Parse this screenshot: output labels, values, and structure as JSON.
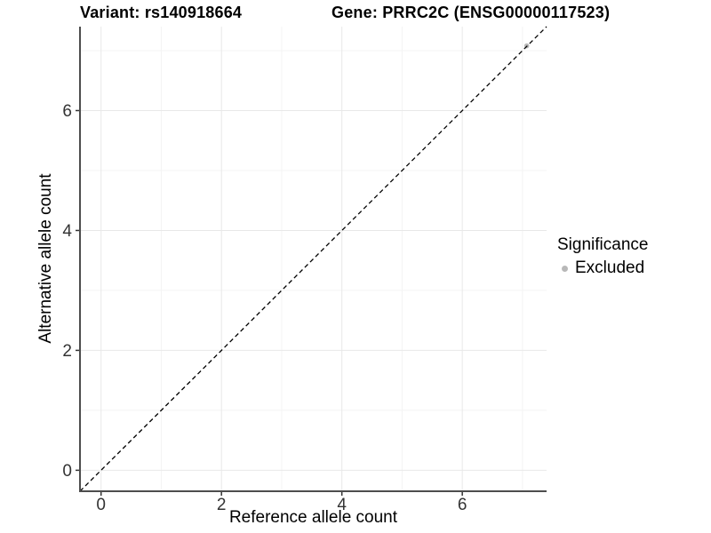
{
  "chart_data": {
    "type": "scatter",
    "titles": {
      "variant": "Variant: rs140918664",
      "gene": "Gene: PRRC2C (ENSG00000117523)"
    },
    "xlabel": "Reference allele count",
    "ylabel": "Alternative allele count",
    "xlim": [
      -0.35,
      7.4
    ],
    "ylim": [
      -0.35,
      7.4
    ],
    "x_major_ticks": [
      0,
      2,
      4,
      6
    ],
    "y_major_ticks": [
      0,
      2,
      4,
      6
    ],
    "x_minor_gridlines": [
      1,
      3,
      5,
      7
    ],
    "y_minor_gridlines": [
      1,
      3,
      5,
      7
    ],
    "grid": "major+minor",
    "identity_line": {
      "style": "dashed",
      "color": "#000000",
      "x1": -0.35,
      "y1": -0.35,
      "x2": 7.4,
      "y2": 7.4
    },
    "series": [
      {
        "name": "Excluded",
        "color": "#b8b8b8",
        "points": [
          {
            "x": 7.07,
            "y": 7.08
          }
        ]
      }
    ],
    "legend": {
      "title": "Significance",
      "position": "right",
      "entries": [
        {
          "label": "Excluded",
          "color": "#b8b8b8"
        }
      ]
    },
    "colors": {
      "axis_line": "#4d4d4d",
      "tick_mark": "#333333",
      "tick_label": "#333333",
      "grid_major": "#e8e8e8",
      "grid_minor": "#f4f4f4",
      "background": "#ffffff"
    }
  }
}
